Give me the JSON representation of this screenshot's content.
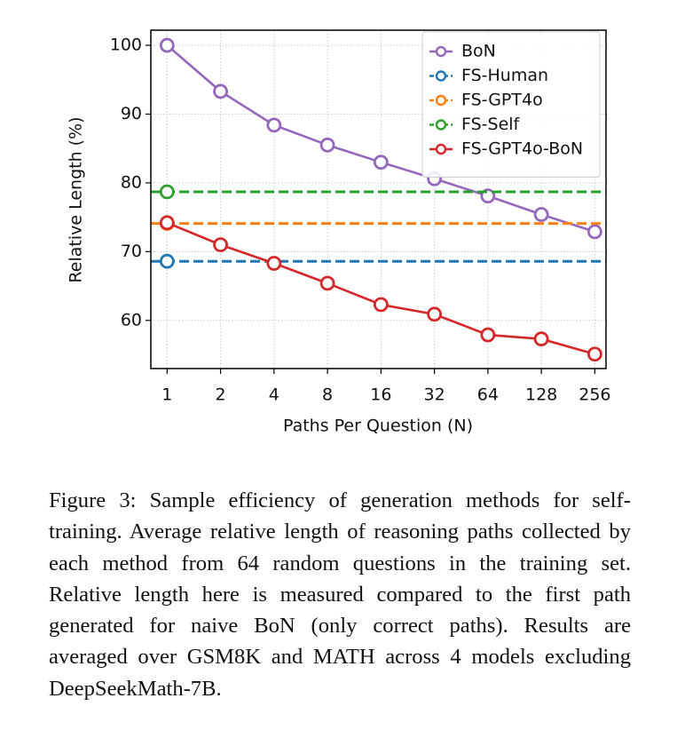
{
  "chart_data": {
    "type": "line",
    "xlabel": "Paths Per Question (N)",
    "ylabel": "Relative Length (%)",
    "x": [
      1,
      2,
      4,
      8,
      16,
      32,
      64,
      128,
      256
    ],
    "xlog": 2,
    "xlim": [
      0.81,
      296
    ],
    "xticks": [
      1,
      2,
      4,
      8,
      16,
      32,
      64,
      128,
      256
    ],
    "ylim": [
      53,
      102.2
    ],
    "yticks": [
      60,
      70,
      80,
      90,
      100
    ],
    "grid": true,
    "legend": "upper right",
    "series": [
      {
        "name": "BoN",
        "color": "#9467bd",
        "values": [
          100,
          93.3,
          88.4,
          85.5,
          83.0,
          80.6,
          78.1,
          75.4,
          72.9
        ]
      },
      {
        "name": "FS-Human",
        "color": "#1f77b4",
        "x": [
          1
        ],
        "values": [
          68.6
        ],
        "dashed": true
      },
      {
        "name": "FS-GPT4o",
        "color": "#ff7f0e",
        "x": [
          1
        ],
        "values": [
          74.1
        ],
        "dashed": true
      },
      {
        "name": "FS-Self",
        "color": "#2ca02c",
        "x": [
          1
        ],
        "values": [
          78.7
        ],
        "dashed": true
      },
      {
        "name": "FS-GPT4o-BoN",
        "color": "#d62728",
        "values": [
          74.2,
          71.0,
          68.3,
          65.4,
          62.3,
          60.9,
          57.9,
          57.3,
          55.1
        ]
      }
    ]
  },
  "caption": "Figure 3: Sample efficiency of generation methods for self-training. Average relative length of reasoning paths collected by each method from 64 random questions in the training set.  Relative length here is measured compared to the first path generated for naive BoN (only correct paths). Results are averaged over GSM8K and MATH across 4 models excluding DeepSeekMath-7B."
}
